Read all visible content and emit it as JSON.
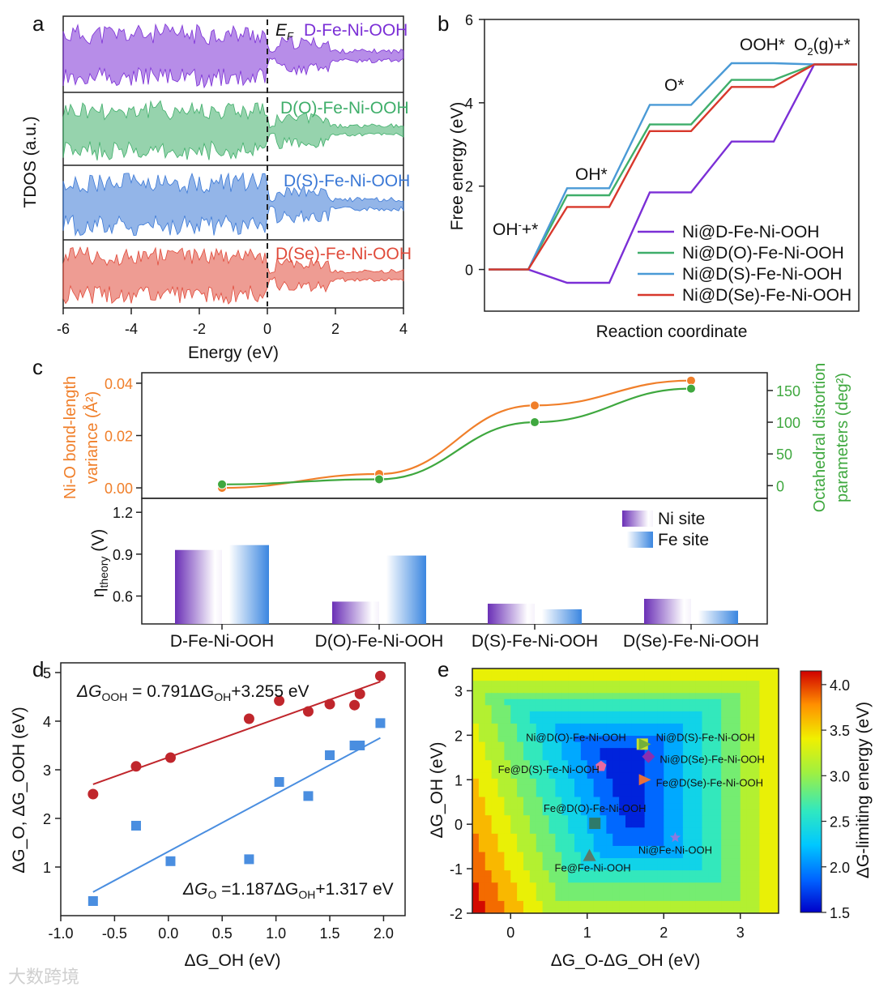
{
  "panels": {
    "a": "a",
    "b": "b",
    "c": "c",
    "d": "d",
    "e": "e"
  },
  "chart_data": [
    {
      "panel": "a",
      "type": "area",
      "xlabel": "Energy (eV)",
      "ylabel": "TDOS (a.u.)",
      "xlim": [
        -6,
        4
      ],
      "xticks": [
        "-6",
        "-4",
        "-2",
        "0",
        "2",
        "4"
      ],
      "annotation": "E_F",
      "annotation_main": "E",
      "annotation_sub": "F",
      "series": [
        {
          "name": "D-Fe-Ni-OOH",
          "color": "#7b2fd6"
        },
        {
          "name": "D(O)-Fe-Ni-OOH",
          "color": "#3fae6a"
        },
        {
          "name": "D(S)-Fe-Ni-OOH",
          "color": "#3a78d6"
        },
        {
          "name": "D(Se)-Fe-Ni-OOH",
          "color": "#e04a3a"
        }
      ]
    },
    {
      "panel": "b",
      "type": "line",
      "xlabel": "Reaction coordinate",
      "ylabel": "Free energy (eV)",
      "ylim": [
        -1,
        6
      ],
      "yticks": [
        0,
        2,
        4,
        6
      ],
      "steps": [
        "OH-+*",
        "OH*",
        "O*",
        "OOH*",
        "O2(g)+*"
      ],
      "step_labels": {
        "s0_main": "OH",
        "s0_sup": "-",
        "s0_tail": "+*",
        "s1": "OH*",
        "s2": "O*",
        "s3": "OOH*",
        "s4_main": "O",
        "s4_sub": "2",
        "s4_tail": "(g)+*"
      },
      "series": [
        {
          "name": "Ni@D-Fe-Ni-OOH",
          "color": "#7b2fd6",
          "values": [
            0,
            -0.32,
            1.85,
            3.07,
            4.92
          ]
        },
        {
          "name": "Ni@D(O)-Fe-Ni-OOH",
          "color": "#3fae6a",
          "values": [
            0,
            1.78,
            3.48,
            4.55,
            4.92
          ]
        },
        {
          "name": "Ni@D(S)-Fe-Ni-OOH",
          "color": "#4a9ad6",
          "values": [
            0,
            1.95,
            3.95,
            4.95,
            4.92
          ]
        },
        {
          "name": "Ni@D(Se)-Fe-Ni-OOH",
          "color": "#d8382c",
          "values": [
            0,
            1.5,
            3.32,
            4.38,
            4.92
          ]
        }
      ]
    },
    {
      "panel": "c-top",
      "type": "line",
      "categories": [
        "D-Fe-Ni-OOH",
        "D(O)-Fe-Ni-OOH",
        "D(S)-Fe-Ni-OOH",
        "D(Se)-Fe-Ni-OOH"
      ],
      "ylabel_left_line1": "Ni-O bond-length",
      "ylabel_left_line2": "variance (Å²)",
      "ylabel_right_line1": "Octahedral distortion",
      "ylabel_right_line2": "parameters (deg²)",
      "ylim_left": [
        -0.004,
        0.044
      ],
      "yticks_left": [
        "0.00",
        "0.02",
        "0.04"
      ],
      "ylim_right": [
        -20,
        178
      ],
      "yticks_right": [
        "0",
        "50",
        "100",
        "150"
      ],
      "series": [
        {
          "name": "Ni-O bond-length variance",
          "axis": "left",
          "color": "#f07f2a",
          "values": [
            0.0,
            0.0053,
            0.0315,
            0.041
          ]
        },
        {
          "name": "Octahedral distortion parameters",
          "axis": "right",
          "color": "#3fa83f",
          "values": [
            2,
            10,
            100,
            153
          ]
        }
      ]
    },
    {
      "panel": "c-bottom",
      "type": "bar",
      "categories": [
        "D-Fe-Ni-OOH",
        "D(O)-Fe-Ni-OOH",
        "D(S)-Fe-Ni-OOH",
        "D(Se)-Fe-Ni-OOH"
      ],
      "ylabel": "η_theory (V)",
      "ylabel_main": "η",
      "ylabel_sub": "theory",
      "ylabel_tail": " (V)",
      "ylim": [
        0.4,
        1.3
      ],
      "yticks": [
        "0.6",
        "0.9",
        "1.2"
      ],
      "series": [
        {
          "name": "Ni site",
          "color": "#6a2fb6",
          "values": [
            0.93,
            0.56,
            0.545,
            0.58
          ]
        },
        {
          "name": "Fe site",
          "color": "#3a86e0",
          "values": [
            0.965,
            0.89,
            0.505,
            0.495
          ]
        }
      ]
    },
    {
      "panel": "d",
      "type": "scatter",
      "xlabel": "ΔG_OH (eV)",
      "ylabel": "ΔG_O, ΔG_OOH (eV)",
      "xlim": [
        -1.0,
        2.2
      ],
      "xticks": [
        "-1.0",
        "-0.5",
        "0.0",
        "0.5",
        "1.0",
        "1.5",
        "2.0"
      ],
      "ylim": [
        0,
        5.2
      ],
      "yticks": [
        "1",
        "2",
        "3",
        "4",
        "5"
      ],
      "eq_ooh": {
        "a": "ΔG",
        "a_sub": "OOH",
        "b": " = 0.791ΔG",
        "b_sub": "OH",
        "c": "+3.255 eV"
      },
      "eq_o": {
        "a": "ΔG",
        "a_sub": "O",
        "b": " =1.187ΔG",
        "b_sub": "OH",
        "c": "+1.317 eV"
      },
      "series": [
        {
          "name": "ΔG_OOH",
          "color": "#c0262c",
          "marker": "circle",
          "x": [
            -0.7,
            -0.3,
            0.02,
            0.75,
            1.03,
            1.3,
            1.5,
            1.73,
            1.78,
            1.97
          ],
          "y": [
            2.5,
            3.07,
            3.25,
            4.05,
            4.42,
            4.2,
            4.35,
            4.33,
            4.56,
            4.93
          ],
          "fit": {
            "slope": 0.791,
            "intercept": 3.255,
            "xrange": [
              -0.7,
              1.97
            ]
          }
        },
        {
          "name": "ΔG_O",
          "color": "#4a8ee0",
          "marker": "square",
          "x": [
            -0.7,
            -0.3,
            0.02,
            0.75,
            1.03,
            1.3,
            1.5,
            1.73,
            1.78,
            1.97
          ],
          "y": [
            0.3,
            1.85,
            1.12,
            1.16,
            2.75,
            2.46,
            3.3,
            3.5,
            3.5,
            3.96
          ],
          "fit": {
            "slope": 1.187,
            "intercept": 1.317,
            "xrange": [
              -0.7,
              1.97
            ]
          }
        }
      ]
    },
    {
      "panel": "e",
      "type": "heatmap",
      "xlabel": "ΔG_O-ΔG_OH (eV)",
      "ylabel": "ΔG_OH (eV)",
      "colorbar_label": "ΔG-limiting energy (eV)",
      "xlim": [
        -0.5,
        3.5
      ],
      "xticks": [
        "0",
        "1",
        "2",
        "3"
      ],
      "ylim": [
        -2,
        3.5
      ],
      "yticks": [
        "-2",
        "-1",
        "0",
        "1",
        "2",
        "3"
      ],
      "colorbar_range": [
        1.5,
        4.15
      ],
      "colorbar_ticks": [
        "1.5",
        "2.0",
        "2.5",
        "3.0",
        "3.5",
        "4.0"
      ],
      "points": [
        {
          "label": "Ni@D(O)-Fe-Ni-OOH",
          "x": 1.72,
          "y": 1.8,
          "color": "#c8e030",
          "marker": "square"
        },
        {
          "label": "Ni@D(S)-Fe-Ni-OOH",
          "x": 1.75,
          "y": 1.8,
          "color": "#74b03a",
          "marker": "triangle-right"
        },
        {
          "label": "Ni@D(Se)-Fe-Ni-OOH",
          "x": 1.8,
          "y": 1.52,
          "color": "#8a2fb0",
          "marker": "diamond"
        },
        {
          "label": "Fe@D(Se)-Fe-Ni-OOH",
          "x": 1.75,
          "y": 1.0,
          "color": "#e8703a",
          "marker": "triangle-right"
        },
        {
          "label": "Fe@D(S)-Fe-Ni-OOH",
          "x": 1.18,
          "y": 1.3,
          "color": "#e86aa0",
          "marker": "pentagon"
        },
        {
          "label": "Fe@D(O)-Fe-Ni-OOH",
          "x": 1.1,
          "y": 0.02,
          "color": "#2e7a6a",
          "marker": "square"
        },
        {
          "label": "Ni@Fe-Ni-OOH",
          "x": 2.15,
          "y": -0.3,
          "color": "#8a7ae0",
          "marker": "star"
        },
        {
          "label": "Fe@Fe-Ni-OOH",
          "x": 1.03,
          "y": -0.7,
          "color": "#5a7a6a",
          "marker": "triangle-up"
        }
      ]
    }
  ],
  "watermark": "大数跨境"
}
